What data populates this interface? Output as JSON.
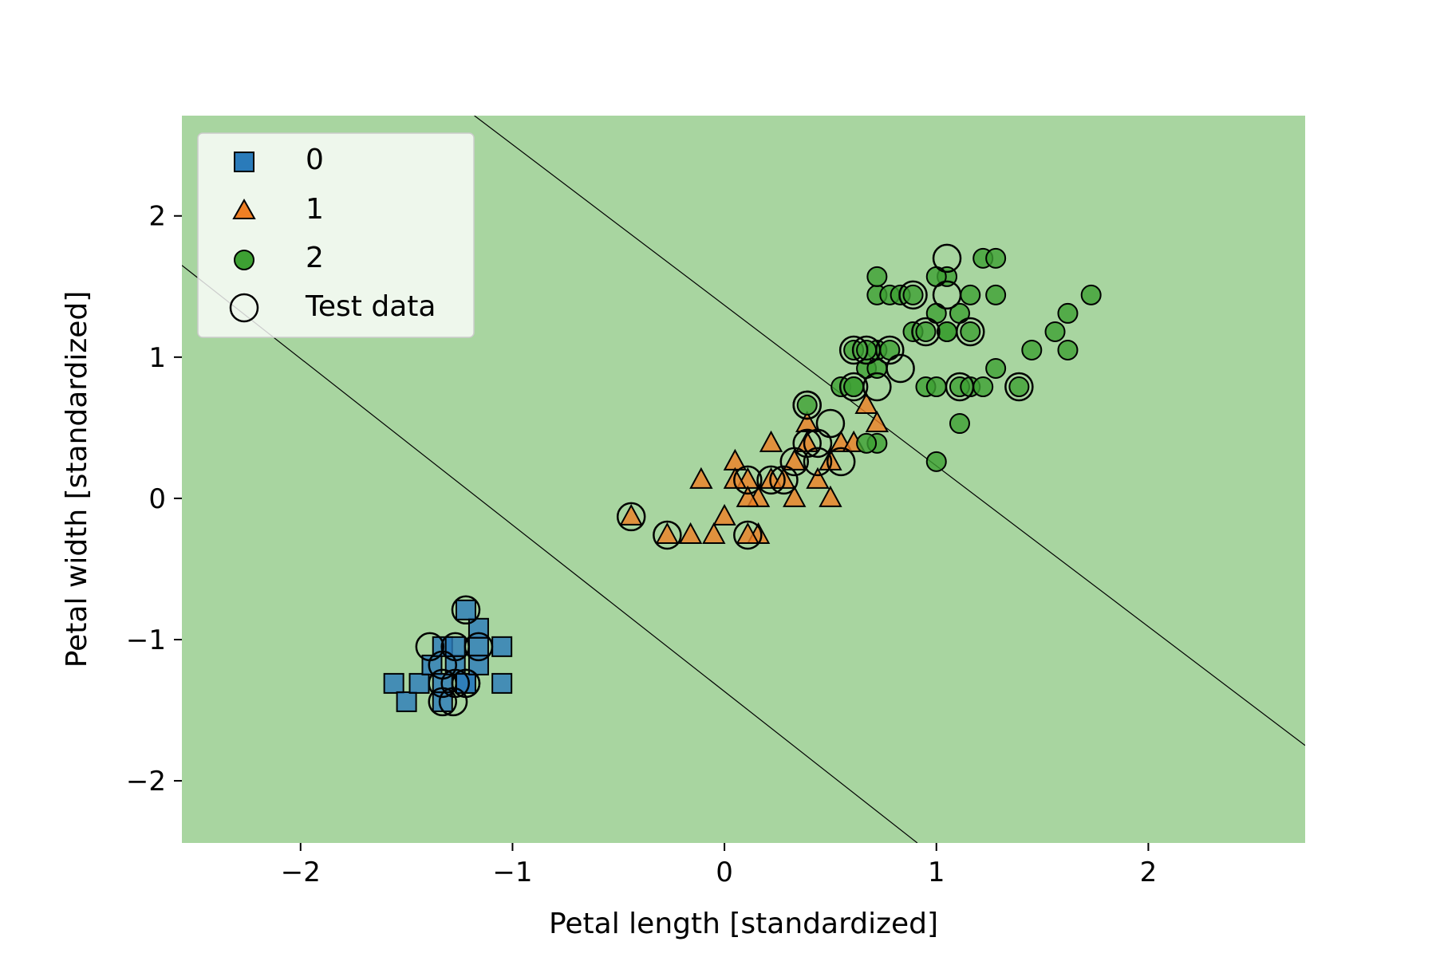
{
  "chart_data": {
    "type": "scatter",
    "xlabel": "Petal length [standardized]",
    "ylabel": "Petal width [standardized]",
    "xlim": [
      -2.56,
      2.74
    ],
    "ylim": [
      -2.44,
      2.71
    ],
    "xticks": [
      -2,
      -1,
      0,
      1,
      2
    ],
    "yticks": [
      -2,
      -1,
      0,
      1,
      2
    ],
    "xtick_labels": [
      "−2",
      "−1",
      "0",
      "1",
      "2"
    ],
    "ytick_labels": [
      "−2",
      "−1",
      "0",
      "1",
      "2"
    ],
    "grid": false,
    "legend_position": "top-left",
    "regions": [
      {
        "class": "0",
        "color": "#9ac1de"
      },
      {
        "class": "1",
        "color": "#fec591"
      },
      {
        "class": "2",
        "color": "#a8d5a0"
      }
    ],
    "decision_boundaries": [
      {
        "between": [
          "0",
          "1"
        ],
        "points": [
          [
            -2.56,
            1.65
          ],
          [
            0.91,
            -2.44
          ]
        ]
      },
      {
        "between": [
          "1",
          "2"
        ],
        "points": [
          [
            -1.18,
            2.71
          ],
          [
            2.74,
            -1.75
          ]
        ]
      }
    ],
    "series": [
      {
        "name": "0",
        "marker": "square",
        "color": "#2a7bba",
        "x": [
          -1.56,
          -1.5,
          -1.44,
          -1.38,
          -1.33,
          -1.27,
          -1.33,
          -1.27,
          -1.22,
          -1.16,
          -1.05,
          -1.05,
          -1.16,
          -1.22,
          -1.33,
          -1.22,
          -1.16
        ],
        "y": [
          -1.31,
          -1.44,
          -1.31,
          -1.18,
          -1.31,
          -1.18,
          -1.05,
          -1.05,
          -1.31,
          -1.05,
          -1.05,
          -1.31,
          -0.92,
          -0.79,
          -1.44,
          -1.31,
          -1.18
        ]
      },
      {
        "name": "1",
        "marker": "triangle",
        "color": "#ee7f24",
        "x": [
          -0.44,
          -0.27,
          -0.16,
          -0.11,
          -0.05,
          0.0,
          0.05,
          0.11,
          0.16,
          0.11,
          0.05,
          0.22,
          0.22,
          0.33,
          0.33,
          0.39,
          0.39,
          0.44,
          0.5,
          0.5,
          0.55,
          0.61,
          0.67,
          0.72,
          0.28,
          0.16,
          0.11
        ],
        "y": [
          -0.13,
          -0.26,
          -0.26,
          0.13,
          -0.26,
          -0.13,
          0.26,
          0.13,
          0.0,
          0.0,
          0.13,
          0.39,
          0.13,
          0.26,
          0.0,
          0.39,
          0.53,
          0.13,
          0.26,
          0.0,
          0.39,
          0.39,
          0.66,
          0.53,
          0.13,
          -0.26,
          -0.26
        ]
      },
      {
        "name": "2",
        "marker": "circle",
        "color": "#3da033",
        "x": [
          0.39,
          0.55,
          0.61,
          0.67,
          0.72,
          0.72,
          0.78,
          0.61,
          0.67,
          0.72,
          0.78,
          0.83,
          0.89,
          0.95,
          1.0,
          1.05,
          1.11,
          1.16,
          1.22,
          1.28,
          1.28,
          1.16,
          1.05,
          1.0,
          0.95,
          1.0,
          1.05,
          1.11,
          1.16,
          1.22,
          1.28,
          1.39,
          1.45,
          1.56,
          1.62,
          1.62,
          1.73,
          1.0,
          1.11,
          0.72,
          0.67,
          0.72,
          0.89,
          0.61
        ],
        "y": [
          0.66,
          0.79,
          0.79,
          0.92,
          0.92,
          1.05,
          1.05,
          1.05,
          1.05,
          1.44,
          1.44,
          1.44,
          1.18,
          1.18,
          1.31,
          1.18,
          1.31,
          1.44,
          1.7,
          1.7,
          1.44,
          1.18,
          1.57,
          1.57,
          0.79,
          0.79,
          1.18,
          0.79,
          0.79,
          0.79,
          0.92,
          0.79,
          1.05,
          1.18,
          1.31,
          1.05,
          1.44,
          0.26,
          0.53,
          0.39,
          0.39,
          1.57,
          1.44,
          0.79
        ]
      }
    ],
    "test_data": {
      "name": "Test data",
      "marker": "hollow-circle",
      "x": [
        -1.39,
        -1.33,
        -1.33,
        -1.28,
        -1.27,
        -1.27,
        -1.22,
        -1.22,
        -1.16,
        -1.33,
        -1.22,
        -0.44,
        -0.27,
        0.11,
        0.11,
        0.22,
        0.28,
        0.33,
        0.39,
        0.39,
        0.44,
        0.44,
        0.5,
        0.55,
        0.39,
        0.61,
        0.61,
        0.67,
        0.72,
        0.78,
        0.83,
        0.89,
        0.95,
        1.05,
        1.05,
        1.11,
        1.16,
        1.39
      ],
      "y": [
        -1.05,
        -1.18,
        -1.31,
        -1.44,
        -1.05,
        -1.31,
        -0.79,
        -1.31,
        -1.05,
        -1.44,
        -1.31,
        -0.13,
        -0.26,
        0.13,
        -0.26,
        0.13,
        0.13,
        0.26,
        0.39,
        0.66,
        0.39,
        0.26,
        0.53,
        0.26,
        0.66,
        1.05,
        0.79,
        1.05,
        0.79,
        1.05,
        0.92,
        1.44,
        1.18,
        1.7,
        1.44,
        0.79,
        1.18,
        0.79
      ]
    }
  }
}
